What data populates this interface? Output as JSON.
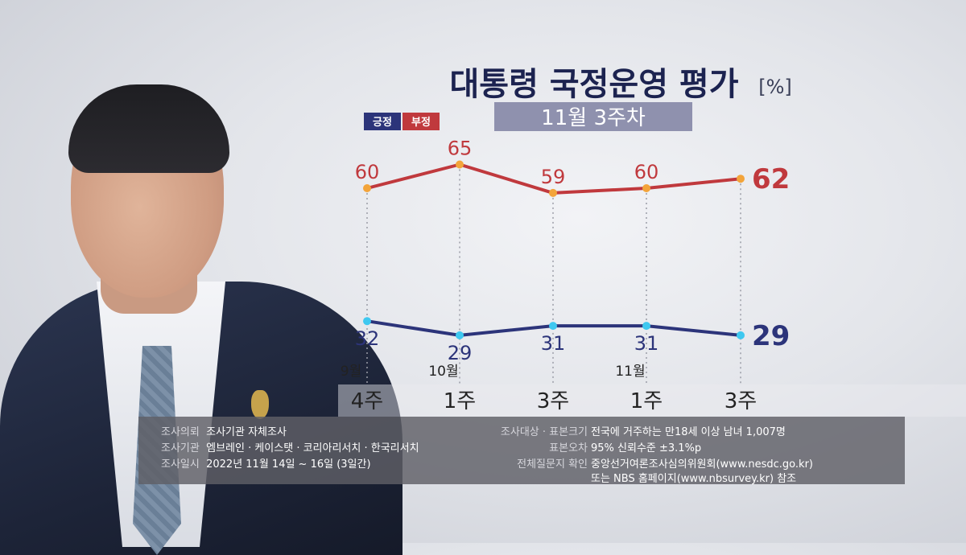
{
  "chart_data": {
    "type": "line",
    "title": "대통령 국정운영 평가",
    "title_unit": "[%]",
    "subtitle": "11월 3주차",
    "legend": [
      {
        "label": "긍정",
        "color": "#2c347a"
      },
      {
        "label": "부정",
        "color": "#c0393d"
      }
    ],
    "month_labels": [
      "9월",
      "10월",
      "",
      "11월",
      ""
    ],
    "categories": [
      "4주",
      "1주",
      "3주",
      "1주",
      "3주"
    ],
    "series": [
      {
        "name": "부정",
        "color": "#c0393d",
        "point_color": "#f3a43a",
        "values": [
          60,
          65,
          59,
          60,
          62
        ]
      },
      {
        "name": "긍정",
        "color": "#2c347a",
        "point_color": "#3ec8f0",
        "values": [
          32,
          29,
          31,
          31,
          29
        ]
      }
    ],
    "ylim": [
      20,
      70
    ]
  },
  "info": {
    "left": [
      {
        "label": "조사의뢰",
        "value": "조사기관 자체조사"
      },
      {
        "label": "조사기관",
        "value": "엠브레인 · 케이스탯 · 코리아리서치 · 한국리서치"
      },
      {
        "label": "조사일시",
        "value": "2022년 11월 14일 ~ 16일 (3일간)"
      }
    ],
    "right": [
      {
        "label": "조사대상 · 표본크기",
        "value": "전국에 거주하는 만18세 이상 남녀 1,007명"
      },
      {
        "label": "표본오차",
        "value": "95% 신뢰수준 ±3.1%p"
      },
      {
        "label": "전체질문지 확인",
        "value": "중앙선거여론조사심의위원회(www.nesdc.go.kr)"
      },
      {
        "label": "",
        "value": "또는 NBS 홈페이지(www.nbsurvey.kr) 참조"
      }
    ]
  }
}
